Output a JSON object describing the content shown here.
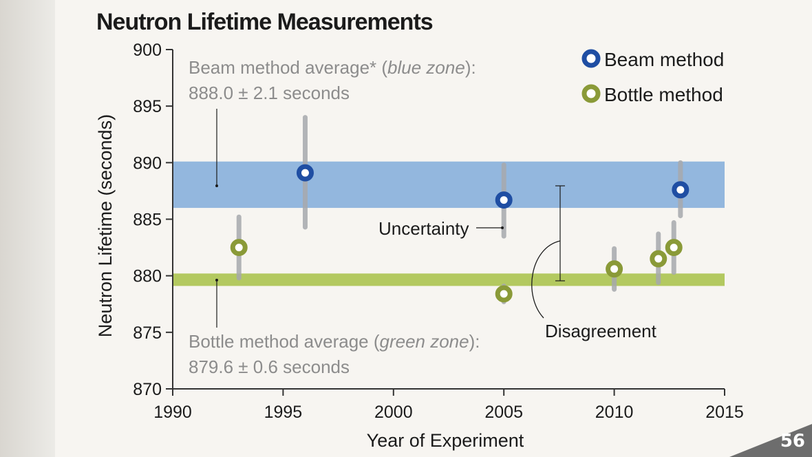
{
  "page_number": "56",
  "chart_data": {
    "type": "scatter",
    "title": "Neutron Lifetime Measurements",
    "xlabel": "Year of Experiment",
    "ylabel": "Neutron Lifetime (seconds)",
    "xlim": [
      1990,
      2015
    ],
    "ylim": [
      870,
      900
    ],
    "xticks": [
      "1990",
      "1995",
      "2000",
      "2005",
      "2010",
      "2015"
    ],
    "yticks": [
      "870",
      "875",
      "880",
      "885",
      "890",
      "895",
      "900"
    ],
    "legend_position": "top-right",
    "series": [
      {
        "name": "Beam method",
        "color": "#1f4ea3",
        "points": [
          {
            "x": 1996,
            "y": 889.1,
            "low": 884.3,
            "high": 894.0
          },
          {
            "x": 2005,
            "y": 886.7,
            "low": 883.5,
            "high": 889.8
          },
          {
            "x": 2013,
            "y": 887.6,
            "low": 885.3,
            "high": 890.0
          }
        ]
      },
      {
        "name": "Bottle method",
        "color": "#8a9a38",
        "points": [
          {
            "x": 1993,
            "y": 882.5,
            "low": 879.8,
            "high": 885.2
          },
          {
            "x": 2005,
            "y": 878.4,
            "low": 877.7,
            "high": 879.1
          },
          {
            "x": 2010,
            "y": 880.6,
            "low": 878.8,
            "high": 882.4
          },
          {
            "x": 2012,
            "y": 881.5,
            "low": 879.4,
            "high": 883.7
          },
          {
            "x": 2012.7,
            "y": 882.5,
            "low": 880.3,
            "high": 884.7
          }
        ]
      }
    ],
    "bands": [
      {
        "name": "blue zone",
        "from": 886.0,
        "to": 890.1,
        "color": "#93b7de"
      },
      {
        "name": "green zone",
        "from": 879.1,
        "to": 880.2,
        "color": "#b3c960"
      }
    ],
    "annotations": {
      "beam_average_line1": "Beam method average* (",
      "beam_average_zone": "blue zone",
      "beam_average_end": "):",
      "beam_average_value": "888.0 ± 2.1 seconds",
      "bottle_average_line1": "Bottle method average (",
      "bottle_average_zone": "green zone",
      "bottle_average_end": "):",
      "bottle_average_value": "879.6 ± 0.6 seconds",
      "uncertainty": "Uncertainty",
      "disagreement": "Disagreement"
    }
  }
}
